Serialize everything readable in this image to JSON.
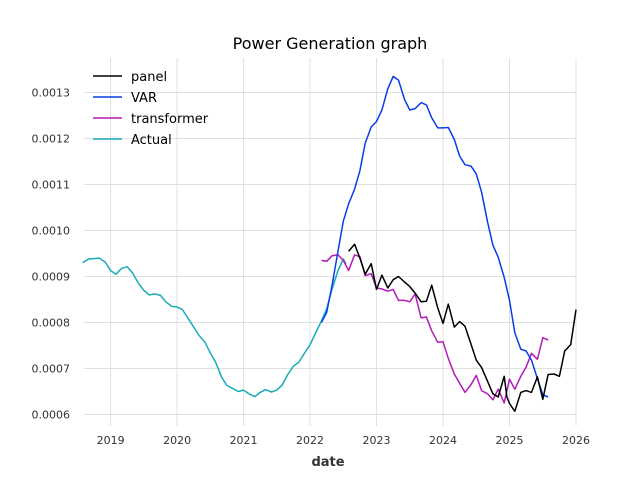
{
  "chart_data": {
    "type": "line",
    "title": "Power Generation graph",
    "xlabel": "date",
    "ylabel": "",
    "xlim": [
      2018.6,
      2026.0
    ],
    "ylim": [
      0.000575,
      0.001375
    ],
    "x_ticks": [
      2019,
      2020,
      2021,
      2022,
      2023,
      2024,
      2025,
      2026
    ],
    "x_tick_labels": [
      "2019",
      "2020",
      "2021",
      "2022",
      "2023",
      "2024",
      "2025",
      "2026"
    ],
    "y_ticks": [
      0.0006,
      0.0007,
      0.0008,
      0.0009,
      0.001,
      0.0011,
      0.0012,
      0.0013
    ],
    "y_tick_labels": [
      "0.0006",
      "0.0007",
      "0.0008",
      "0.0009",
      "0.0010",
      "0.0011",
      "0.0012",
      "0.0013"
    ],
    "grid": true,
    "legend_position": "top-left",
    "series": [
      {
        "name": "panel",
        "color": "#000000",
        "points": [
          [
            2022.58,
            0.000955
          ],
          [
            2022.67,
            0.00097
          ],
          [
            2022.75,
            0.00094
          ],
          [
            2022.83,
            0.000905
          ],
          [
            2022.92,
            0.000928
          ],
          [
            2023.0,
            0.000872
          ],
          [
            2023.08,
            0.000903
          ],
          [
            2023.17,
            0.000875
          ],
          [
            2023.25,
            0.000893
          ],
          [
            2023.33,
            0.0009
          ],
          [
            2023.42,
            0.000888
          ],
          [
            2023.5,
            0.000878
          ],
          [
            2023.58,
            0.000864
          ],
          [
            2023.67,
            0.000845
          ],
          [
            2023.75,
            0.000846
          ],
          [
            2023.83,
            0.000881
          ],
          [
            2023.92,
            0.000832
          ],
          [
            2024.0,
            0.000798
          ],
          [
            2024.08,
            0.00084
          ],
          [
            2024.17,
            0.00079
          ],
          [
            2024.25,
            0.000802
          ],
          [
            2024.33,
            0.000792
          ],
          [
            2024.42,
            0.000753
          ],
          [
            2024.5,
            0.000718
          ],
          [
            2024.58,
            0.000702
          ],
          [
            2024.67,
            0.000672
          ],
          [
            2024.75,
            0.000645
          ],
          [
            2024.83,
            0.000638
          ],
          [
            2024.92,
            0.000683
          ],
          [
            2024.96,
            0.000638
          ],
          [
            2025.0,
            0.000624
          ],
          [
            2025.08,
            0.000607
          ],
          [
            2025.17,
            0.000648
          ],
          [
            2025.25,
            0.000652
          ],
          [
            2025.33,
            0.000648
          ],
          [
            2025.42,
            0.000682
          ],
          [
            2025.5,
            0.000633
          ],
          [
            2025.58,
            0.000687
          ],
          [
            2025.67,
            0.000688
          ],
          [
            2025.75,
            0.000683
          ],
          [
            2025.83,
            0.000738
          ],
          [
            2025.92,
            0.000752
          ],
          [
            2026.0,
            0.000828
          ]
        ]
      },
      {
        "name": "VAR",
        "color": "#0a3dea",
        "points": [
          [
            2022.17,
            0.0008
          ],
          [
            2022.25,
            0.000822
          ],
          [
            2022.33,
            0.00088
          ],
          [
            2022.42,
            0.000955
          ],
          [
            2022.5,
            0.00102
          ],
          [
            2022.58,
            0.001058
          ],
          [
            2022.67,
            0.00109
          ],
          [
            2022.75,
            0.00113
          ],
          [
            2022.83,
            0.00119
          ],
          [
            2022.92,
            0.001225
          ],
          [
            2023.0,
            0.001237
          ],
          [
            2023.08,
            0.001262
          ],
          [
            2023.17,
            0.001308
          ],
          [
            2023.25,
            0.001335
          ],
          [
            2023.33,
            0.001327
          ],
          [
            2023.42,
            0.001285
          ],
          [
            2023.5,
            0.001262
          ],
          [
            2023.58,
            0.001265
          ],
          [
            2023.67,
            0.001278
          ],
          [
            2023.75,
            0.001273
          ],
          [
            2023.83,
            0.001245
          ],
          [
            2023.92,
            0.001223
          ],
          [
            2024.0,
            0.001223
          ],
          [
            2024.08,
            0.001224
          ],
          [
            2024.17,
            0.001198
          ],
          [
            2024.25,
            0.001162
          ],
          [
            2024.33,
            0.001143
          ],
          [
            2024.42,
            0.00114
          ],
          [
            2024.5,
            0.001123
          ],
          [
            2024.58,
            0.001083
          ],
          [
            2024.67,
            0.001018
          ],
          [
            2024.75,
            0.000968
          ],
          [
            2024.83,
            0.000942
          ],
          [
            2024.92,
            0.000898
          ],
          [
            2025.0,
            0.000848
          ],
          [
            2025.08,
            0.000778
          ],
          [
            2025.17,
            0.000742
          ],
          [
            2025.25,
            0.000738
          ],
          [
            2025.33,
            0.000718
          ],
          [
            2025.42,
            0.000678
          ],
          [
            2025.5,
            0.000643
          ],
          [
            2025.58,
            0.000638
          ]
        ]
      },
      {
        "name": "transformer",
        "color": "#b51ab7",
        "points": [
          [
            2022.17,
            0.000935
          ],
          [
            2022.25,
            0.000933
          ],
          [
            2022.33,
            0.000945
          ],
          [
            2022.42,
            0.000947
          ],
          [
            2022.5,
            0.000935
          ],
          [
            2022.58,
            0.000913
          ],
          [
            2022.67,
            0.000947
          ],
          [
            2022.75,
            0.000943
          ],
          [
            2022.83,
            0.000902
          ],
          [
            2022.92,
            0.000906
          ],
          [
            2023.0,
            0.000875
          ],
          [
            2023.08,
            0.000873
          ],
          [
            2023.17,
            0.000868
          ],
          [
            2023.25,
            0.000872
          ],
          [
            2023.33,
            0.000848
          ],
          [
            2023.42,
            0.000848
          ],
          [
            2023.5,
            0.000845
          ],
          [
            2023.58,
            0.000862
          ],
          [
            2023.67,
            0.00081
          ],
          [
            2023.75,
            0.000812
          ],
          [
            2023.83,
            0.000782
          ],
          [
            2023.92,
            0.000757
          ],
          [
            2024.0,
            0.000758
          ],
          [
            2024.08,
            0.000722
          ],
          [
            2024.17,
            0.000688
          ],
          [
            2024.25,
            0.000668
          ],
          [
            2024.33,
            0.000648
          ],
          [
            2024.42,
            0.000665
          ],
          [
            2024.5,
            0.000685
          ],
          [
            2024.58,
            0.000652
          ],
          [
            2024.67,
            0.000645
          ],
          [
            2024.75,
            0.000632
          ],
          [
            2024.83,
            0.000655
          ],
          [
            2024.92,
            0.000625
          ],
          [
            2025.0,
            0.000677
          ],
          [
            2025.08,
            0.000655
          ],
          [
            2025.17,
            0.000683
          ],
          [
            2025.25,
            0.000703
          ],
          [
            2025.33,
            0.000733
          ],
          [
            2025.42,
            0.00072
          ],
          [
            2025.5,
            0.000767
          ],
          [
            2025.58,
            0.000762
          ]
        ]
      },
      {
        "name": "Actual",
        "color": "#1aabb9",
        "points": [
          [
            2018.58,
            0.00093
          ],
          [
            2018.67,
            0.000938
          ],
          [
            2018.75,
            0.000939
          ],
          [
            2018.83,
            0.00094
          ],
          [
            2018.92,
            0.000931
          ],
          [
            2019.0,
            0.000913
          ],
          [
            2019.08,
            0.000905
          ],
          [
            2019.17,
            0.000918
          ],
          [
            2019.25,
            0.000921
          ],
          [
            2019.33,
            0.000908
          ],
          [
            2019.42,
            0.000885
          ],
          [
            2019.5,
            0.00087
          ],
          [
            2019.58,
            0.00086
          ],
          [
            2019.67,
            0.000862
          ],
          [
            2019.75,
            0.000859
          ],
          [
            2019.83,
            0.000845
          ],
          [
            2019.92,
            0.000835
          ],
          [
            2020.0,
            0.000834
          ],
          [
            2020.08,
            0.000828
          ],
          [
            2020.17,
            0.000808
          ],
          [
            2020.25,
            0.00079
          ],
          [
            2020.33,
            0.000772
          ],
          [
            2020.42,
            0.000757
          ],
          [
            2020.5,
            0.000734
          ],
          [
            2020.58,
            0.000714
          ],
          [
            2020.67,
            0.000681
          ],
          [
            2020.75,
            0.000663
          ],
          [
            2020.83,
            0.000657
          ],
          [
            2020.92,
            0.00065
          ],
          [
            2021.0,
            0.000653
          ],
          [
            2021.08,
            0.000645
          ],
          [
            2021.17,
            0.000639
          ],
          [
            2021.25,
            0.000648
          ],
          [
            2021.33,
            0.000654
          ],
          [
            2021.42,
            0.000649
          ],
          [
            2021.5,
            0.000653
          ],
          [
            2021.58,
            0.000664
          ],
          [
            2021.67,
            0.000688
          ],
          [
            2021.75,
            0.000705
          ],
          [
            2021.83,
            0.000714
          ],
          [
            2021.92,
            0.000734
          ],
          [
            2022.0,
            0.000752
          ],
          [
            2022.08,
            0.000776
          ],
          [
            2022.17,
            0.000803
          ],
          [
            2022.25,
            0.00083
          ],
          [
            2022.33,
            0.000872
          ],
          [
            2022.42,
            0.000913
          ],
          [
            2022.5,
            0.000938
          ],
          [
            2022.54,
            0.000928
          ]
        ]
      }
    ]
  }
}
